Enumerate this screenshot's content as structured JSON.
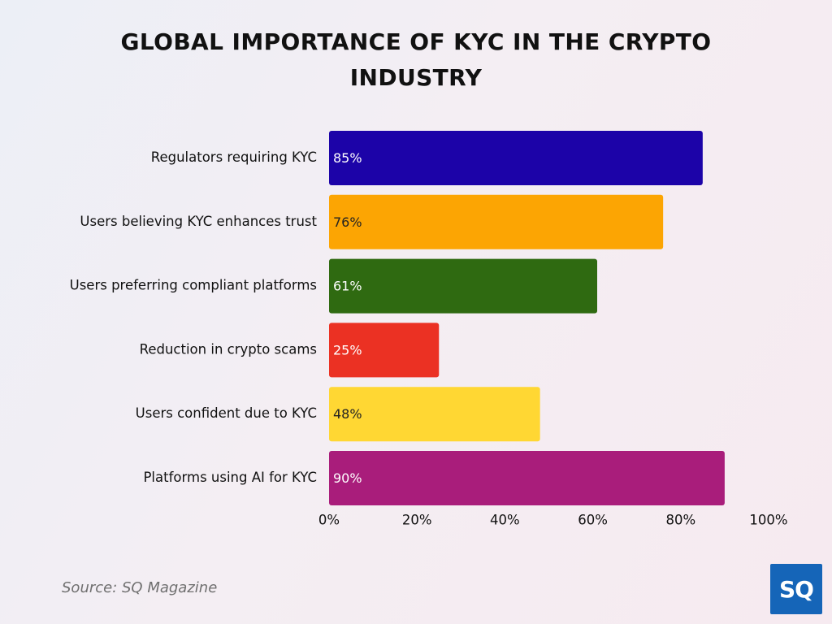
{
  "chart_data": {
    "type": "bar",
    "orientation": "horizontal",
    "title": "GLOBAL IMPORTANCE OF KYC IN THE CRYPTO INDUSTRY",
    "categories": [
      "Regulators requiring KYC",
      "Users believing KYC enhances trust",
      "Users preferring compliant platforms",
      "Reduction in crypto scams",
      "Users confident due to KYC",
      "Platforms using AI for KYC"
    ],
    "values": [
      85,
      76,
      61,
      25,
      48,
      90
    ],
    "value_labels": [
      "85%",
      "76%",
      "61%",
      "25%",
      "48%",
      "90%"
    ],
    "colors": [
      "#1c03a8",
      "#fca503",
      "#2f6a11",
      "#eb3123",
      "#ffd733",
      "#a91d7b"
    ],
    "value_label_colors": [
      "#ffffff",
      "#222222",
      "#ffffff",
      "#ffffff",
      "#222222",
      "#ffffff"
    ],
    "xlim": [
      0,
      100
    ],
    "xticks": [
      0,
      20,
      40,
      60,
      80,
      100
    ],
    "xtick_labels": [
      "0%",
      "20%",
      "40%",
      "60%",
      "80%",
      "100%"
    ],
    "grid": false,
    "legend": "none",
    "source": "Source: SQ Magazine"
  },
  "logo": {
    "text": "SQ",
    "color": "#1565b8"
  }
}
